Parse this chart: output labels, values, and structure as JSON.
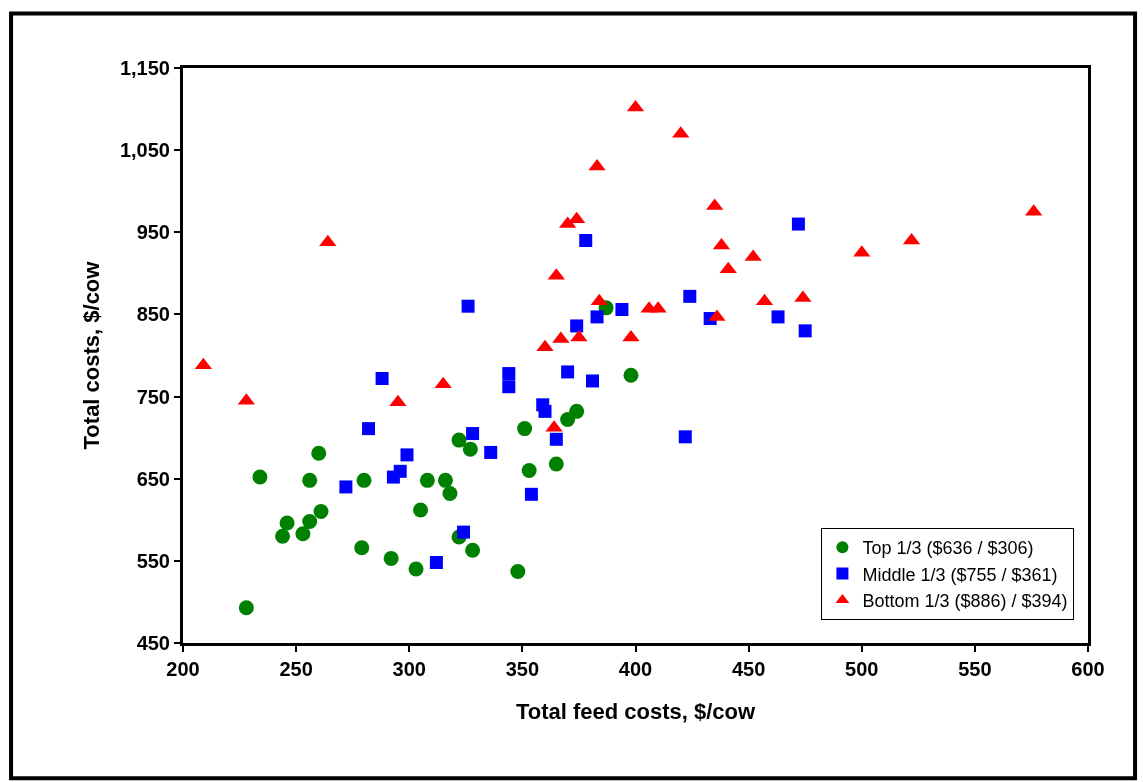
{
  "chart_data": {
    "type": "scatter",
    "xlabel": "Total feed costs, $/cow",
    "ylabel": "Total costs, $/cow",
    "xlim": [
      200,
      600
    ],
    "xticks": [
      200,
      250,
      300,
      350,
      400,
      450,
      500,
      550,
      600
    ],
    "ylim": [
      450,
      1150
    ],
    "yticks": [
      450,
      550,
      650,
      750,
      850,
      950,
      {
        "value": 1050,
        "label": "1,050"
      },
      {
        "value": 1150,
        "label": "1,150"
      }
    ],
    "legend": "bottom right",
    "series": [
      {
        "name": "Top 1/3 ($636 / $306)",
        "color": "#008000",
        "marker": "circle",
        "x": [
          228,
          234,
          244,
          246,
          253,
          256,
          256,
          260,
          261,
          279,
          280,
          292,
          303,
          305,
          308,
          316,
          318,
          322,
          322,
          327,
          328,
          348,
          351,
          353,
          365,
          370,
          374,
          387,
          398
        ],
        "values": [
          493,
          652,
          580,
          596,
          583,
          598,
          648,
          681,
          610,
          566,
          648,
          553,
          540,
          612,
          648,
          648,
          632,
          697,
          579,
          686,
          563,
          537,
          711,
          660,
          668,
          722,
          732,
          858,
          776
        ]
      },
      {
        "name": "Middle 1/3 ($755 / $361)",
        "color": "#0000ff",
        "marker": "square",
        "x": [
          272,
          282,
          288,
          293,
          296,
          299,
          312,
          324,
          326,
          328,
          336,
          344,
          344,
          354,
          359,
          360,
          365,
          370,
          374,
          378,
          381,
          383,
          394,
          422,
          424,
          433,
          463,
          472,
          475
        ],
        "values": [
          640,
          711,
          772,
          652,
          659,
          679,
          548,
          585,
          860,
          705,
          682,
          778,
          762,
          631,
          740,
          732,
          698,
          780,
          836,
          940,
          769,
          847,
          856,
          701,
          872,
          845,
          847,
          960,
          830
        ]
      },
      {
        "name": "Bottom 1/3 ($886) / $394)",
        "color": "#ff0000",
        "marker": "triangle",
        "x": [
          209,
          228,
          264,
          295,
          315,
          360,
          364,
          365,
          367,
          370,
          374,
          375,
          383,
          384,
          398,
          400,
          406,
          410,
          420,
          435,
          436,
          438,
          441,
          452,
          457,
          474,
          500,
          522,
          576
        ],
        "values": [
          788,
          745,
          938,
          743,
          765,
          810,
          712,
          897,
          820,
          960,
          966,
          822,
          1030,
          866,
          822,
          1102,
          857,
          857,
          1070,
          982,
          847,
          934,
          905,
          920,
          866,
          870,
          925,
          940,
          975
        ]
      }
    ]
  }
}
